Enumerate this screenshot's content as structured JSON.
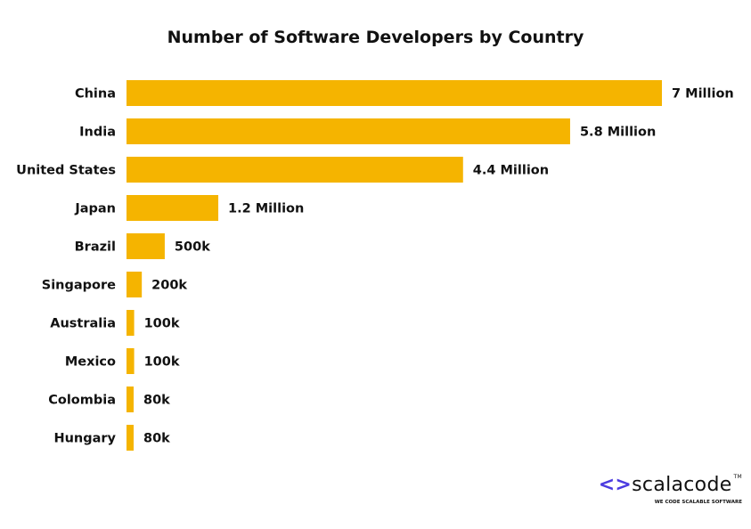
{
  "chart_data": {
    "type": "bar",
    "orientation": "horizontal",
    "title": "Number of Software Developers by Country",
    "categories": [
      "China",
      "India",
      "United States",
      "Japan",
      "Brazil",
      "Singapore",
      "Australia",
      "Mexico",
      "Colombia",
      "Hungary"
    ],
    "values": [
      7000000,
      5800000,
      4400000,
      1200000,
      500000,
      200000,
      100000,
      100000,
      80000,
      80000
    ],
    "data_labels": [
      "7 Million",
      "5.8 Million",
      "4.4 Million",
      "1.2 Million",
      "500k",
      "200k",
      "100k",
      "100k",
      "80k",
      "80k"
    ],
    "bar_color": "#f5b400",
    "grid": false,
    "legend": "none"
  },
  "logo": {
    "chevrons": "<>",
    "name": "scalacode",
    "tm": "TM",
    "tagline": "WE CODE SCALABLE SOFTWARE",
    "accent": "#4b3be0"
  }
}
